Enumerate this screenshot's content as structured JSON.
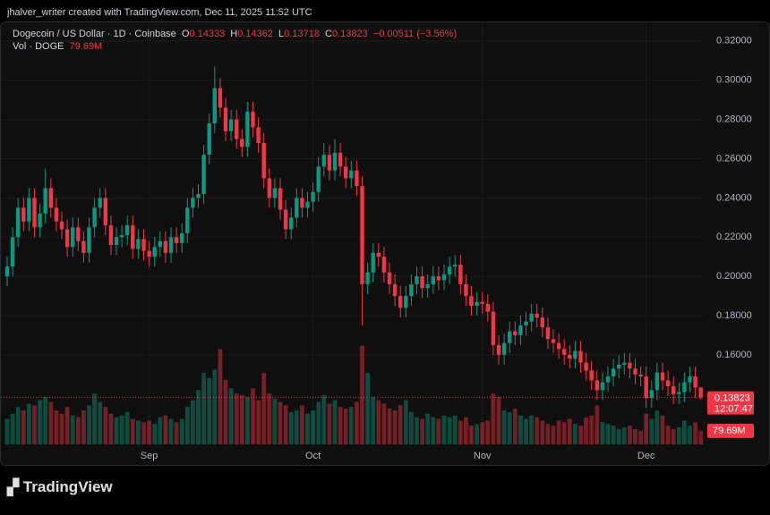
{
  "header": {
    "attribution": "jhalver_writer created with TradingView.com, Dec 11, 2025 11:52 UTC",
    "logo": "TradingView"
  },
  "chart_data": {
    "type": "candlestick",
    "title": "Dogecoin / US Dollar · 1D · Coinbase",
    "ohlc_labels": [
      "O",
      "H",
      "L",
      "C"
    ],
    "change_label": "−0.00511 (−3.56%)",
    "volume_title": "Vol · DOGE",
    "volume_label": "79.69M",
    "countdown": "12:07:47",
    "up_color": "#089981",
    "down_color": "#f23645",
    "categories": [
      null,
      null,
      null,
      null,
      null,
      null,
      null,
      null,
      null,
      null,
      null,
      null,
      null,
      null,
      null,
      null,
      null,
      null,
      null,
      null,
      null,
      null,
      null,
      null,
      null,
      null,
      "Sep",
      null,
      null,
      null,
      null,
      null,
      null,
      null,
      null,
      null,
      null,
      null,
      null,
      null,
      null,
      null,
      null,
      null,
      null,
      null,
      null,
      null,
      null,
      null,
      null,
      null,
      null,
      null,
      null,
      null,
      "Oct",
      null,
      null,
      null,
      null,
      null,
      null,
      null,
      null,
      null,
      null,
      null,
      null,
      null,
      null,
      null,
      null,
      null,
      null,
      null,
      null,
      null,
      null,
      null,
      null,
      null,
      null,
      null,
      null,
      null,
      null,
      "Nov",
      null,
      null,
      null,
      null,
      null,
      null,
      null,
      null,
      null,
      null,
      null,
      null,
      null,
      null,
      null,
      null,
      null,
      null,
      null,
      null,
      null,
      null,
      null,
      null,
      null,
      null,
      null,
      null,
      null,
      "Dec",
      null,
      null,
      null,
      null,
      null,
      null,
      null,
      null,
      null,
      null
    ],
    "open": [
      0.2,
      0.205,
      0.22,
      0.235,
      0.228,
      0.24,
      0.225,
      0.232,
      0.245,
      0.235,
      0.228,
      0.224,
      0.215,
      0.225,
      0.218,
      0.212,
      0.225,
      0.235,
      0.24,
      0.226,
      0.216,
      0.22,
      0.221,
      0.226,
      0.214,
      0.219,
      0.213,
      0.21,
      0.215,
      0.218,
      0.212,
      0.22,
      0.217,
      0.222,
      0.235,
      0.24,
      0.242,
      0.262,
      0.278,
      0.296,
      0.286,
      0.274,
      0.28,
      0.27,
      0.266,
      0.284,
      0.276,
      0.268,
      0.25,
      0.24,
      0.245,
      0.234,
      0.224,
      0.23,
      0.24,
      0.235,
      0.238,
      0.243,
      0.256,
      0.262,
      0.254,
      0.263,
      0.256,
      0.25,
      0.254,
      0.246,
      0.196,
      0.202,
      0.212,
      0.21,
      0.202,
      0.196,
      0.19,
      0.184,
      0.19,
      0.196,
      0.2,
      0.194,
      0.196,
      0.2,
      0.198,
      0.201,
      0.205,
      0.206,
      0.196,
      0.19,
      0.185,
      0.187,
      0.186,
      0.182,
      0.165,
      0.16,
      0.166,
      0.172,
      0.17,
      0.175,
      0.177,
      0.181,
      0.179,
      0.174,
      0.168,
      0.166,
      0.163,
      0.16,
      0.158,
      0.162,
      0.156,
      0.152,
      0.147,
      0.142,
      0.146,
      0.149,
      0.153,
      0.155,
      0.156,
      0.153,
      0.15,
      0.149,
      0.138,
      0.142,
      0.151,
      0.147,
      0.144,
      0.14,
      0.141,
      0.146,
      0.149,
      0.14333
    ],
    "high": [
      0.21,
      0.225,
      0.24,
      0.24,
      0.245,
      0.245,
      0.237,
      0.255,
      0.25,
      0.24,
      0.233,
      0.229,
      0.23,
      0.23,
      0.223,
      0.23,
      0.24,
      0.245,
      0.245,
      0.231,
      0.225,
      0.226,
      0.231,
      0.231,
      0.224,
      0.224,
      0.218,
      0.22,
      0.223,
      0.223,
      0.225,
      0.225,
      0.227,
      0.24,
      0.245,
      0.247,
      0.267,
      0.283,
      0.307,
      0.301,
      0.291,
      0.285,
      0.285,
      0.275,
      0.289,
      0.289,
      0.281,
      0.273,
      0.255,
      0.25,
      0.25,
      0.239,
      0.235,
      0.245,
      0.245,
      0.243,
      0.248,
      0.261,
      0.268,
      0.267,
      0.27,
      0.268,
      0.261,
      0.259,
      0.259,
      0.251,
      0.207,
      0.217,
      0.217,
      0.215,
      0.207,
      0.201,
      0.195,
      0.195,
      0.201,
      0.205,
      0.205,
      0.201,
      0.205,
      0.205,
      0.206,
      0.21,
      0.211,
      0.211,
      0.201,
      0.195,
      0.192,
      0.192,
      0.191,
      0.187,
      0.17,
      0.171,
      0.177,
      0.177,
      0.18,
      0.182,
      0.186,
      0.186,
      0.184,
      0.179,
      0.173,
      0.171,
      0.168,
      0.165,
      0.167,
      0.167,
      0.161,
      0.157,
      0.152,
      0.151,
      0.154,
      0.158,
      0.16,
      0.161,
      0.161,
      0.158,
      0.154,
      0.154,
      0.147,
      0.156,
      0.156,
      0.152,
      0.149,
      0.146,
      0.151,
      0.154,
      0.154,
      0.14362
    ],
    "low": [
      0.195,
      0.2,
      0.215,
      0.223,
      0.223,
      0.22,
      0.22,
      0.227,
      0.23,
      0.223,
      0.219,
      0.21,
      0.21,
      0.213,
      0.207,
      0.207,
      0.22,
      0.23,
      0.221,
      0.211,
      0.211,
      0.215,
      0.216,
      0.209,
      0.209,
      0.208,
      0.205,
      0.205,
      0.21,
      0.207,
      0.207,
      0.212,
      0.212,
      0.217,
      0.23,
      0.235,
      0.237,
      0.257,
      0.273,
      0.281,
      0.269,
      0.269,
      0.265,
      0.261,
      0.261,
      0.271,
      0.263,
      0.245,
      0.235,
      0.235,
      0.229,
      0.219,
      0.219,
      0.225,
      0.23,
      0.23,
      0.233,
      0.238,
      0.251,
      0.249,
      0.249,
      0.251,
      0.245,
      0.245,
      0.241,
      0.175,
      0.191,
      0.197,
      0.205,
      0.197,
      0.191,
      0.185,
      0.179,
      0.179,
      0.185,
      0.191,
      0.189,
      0.189,
      0.191,
      0.193,
      0.193,
      0.196,
      0.2,
      0.191,
      0.185,
      0.18,
      0.18,
      0.181,
      0.177,
      0.16,
      0.155,
      0.155,
      0.161,
      0.165,
      0.165,
      0.17,
      0.172,
      0.174,
      0.169,
      0.163,
      0.161,
      0.158,
      0.155,
      0.153,
      0.153,
      0.151,
      0.147,
      0.142,
      0.137,
      0.137,
      0.141,
      0.144,
      0.148,
      0.15,
      0.148,
      0.145,
      0.144,
      0.133,
      0.133,
      0.137,
      0.142,
      0.139,
      0.135,
      0.135,
      0.136,
      0.141,
      0.138,
      0.13718
    ],
    "close": [
      0.205,
      0.22,
      0.235,
      0.228,
      0.24,
      0.225,
      0.232,
      0.245,
      0.235,
      0.228,
      0.224,
      0.215,
      0.225,
      0.218,
      0.212,
      0.225,
      0.235,
      0.24,
      0.226,
      0.216,
      0.22,
      0.221,
      0.226,
      0.214,
      0.219,
      0.213,
      0.21,
      0.215,
      0.218,
      0.212,
      0.22,
      0.217,
      0.222,
      0.235,
      0.24,
      0.242,
      0.262,
      0.278,
      0.296,
      0.286,
      0.274,
      0.28,
      0.27,
      0.266,
      0.284,
      0.276,
      0.268,
      0.25,
      0.24,
      0.245,
      0.234,
      0.224,
      0.23,
      0.24,
      0.235,
      0.238,
      0.243,
      0.256,
      0.262,
      0.254,
      0.263,
      0.256,
      0.25,
      0.254,
      0.246,
      0.196,
      0.202,
      0.212,
      0.21,
      0.202,
      0.196,
      0.19,
      0.184,
      0.19,
      0.196,
      0.2,
      0.194,
      0.196,
      0.2,
      0.198,
      0.201,
      0.205,
      0.206,
      0.196,
      0.19,
      0.185,
      0.187,
      0.186,
      0.182,
      0.165,
      0.16,
      0.166,
      0.172,
      0.17,
      0.175,
      0.177,
      0.181,
      0.179,
      0.174,
      0.168,
      0.166,
      0.163,
      0.16,
      0.158,
      0.162,
      0.156,
      0.152,
      0.147,
      0.142,
      0.146,
      0.149,
      0.153,
      0.155,
      0.156,
      0.153,
      0.15,
      0.149,
      0.138,
      0.142,
      0.151,
      0.147,
      0.144,
      0.14,
      0.141,
      0.146,
      0.149,
      0.14333,
      0.13823
    ],
    "volume": [
      150,
      180,
      220,
      200,
      240,
      230,
      260,
      280,
      250,
      200,
      180,
      220,
      170,
      160,
      200,
      230,
      300,
      250,
      220,
      180,
      160,
      170,
      190,
      150,
      140,
      130,
      140,
      120,
      160,
      170,
      150,
      130,
      150,
      220,
      260,
      320,
      420,
      390,
      440,
      560,
      380,
      330,
      300,
      290,
      280,
      330,
      260,
      420,
      300,
      270,
      250,
      230,
      190,
      200,
      230,
      180,
      200,
      250,
      290,
      240,
      260,
      220,
      210,
      220,
      250,
      580,
      420,
      280,
      260,
      240,
      210,
      200,
      230,
      260,
      190,
      160,
      150,
      180,
      160,
      150,
      170,
      160,
      170,
      140,
      160,
      110,
      120,
      130,
      140,
      300,
      280,
      200,
      190,
      210,
      170,
      150,
      170,
      160,
      140,
      120,
      110,
      140,
      130,
      150,
      120,
      110,
      160,
      170,
      230,
      130,
      120,
      110,
      90,
      100,
      110,
      90,
      80,
      180,
      150,
      200,
      170,
      110,
      90,
      100,
      140,
      110,
      130,
      79.69
    ],
    "ylim": [
      0.113,
      0.3295
    ],
    "yticks": [
      {
        "value": 0.16,
        "label": "0.16000"
      },
      {
        "value": 0.18,
        "label": "0.18000"
      },
      {
        "value": 0.2,
        "label": "0.20000"
      },
      {
        "value": 0.22,
        "label": "0.22000"
      },
      {
        "value": 0.24,
        "label": "0.24000"
      },
      {
        "value": 0.26,
        "label": "0.26000"
      },
      {
        "value": 0.28,
        "label": "0.28000"
      },
      {
        "value": 0.3,
        "label": "0.30000"
      },
      {
        "value": 0.32,
        "label": "0.32000"
      }
    ],
    "grid": true
  }
}
